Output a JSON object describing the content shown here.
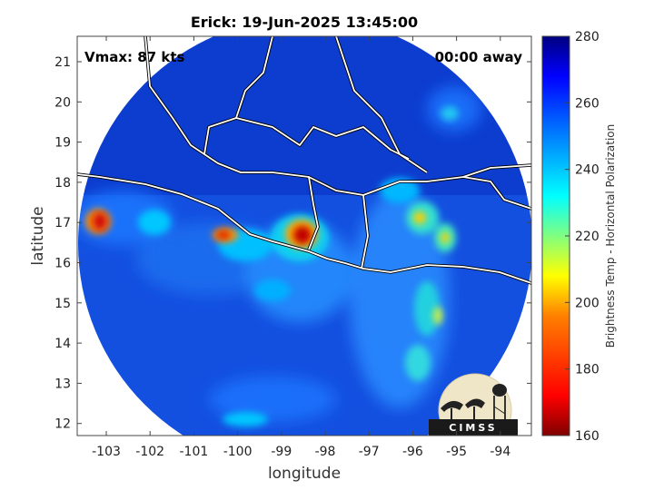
{
  "title": "Erick: 19-Jun-2025 13:45:00",
  "annotations": {
    "vmax": "Vmax: 87 kts",
    "time_away": "00:00 away"
  },
  "axes": {
    "xlabel": "longitude",
    "ylabel": "latitude",
    "x_ticks": [
      "-103",
      "-102",
      "-101",
      "-100",
      "-99",
      "-98",
      "-97",
      "-96",
      "-95",
      "-94"
    ],
    "y_ticks": [
      "21",
      "20",
      "19",
      "18",
      "17",
      "16",
      "15",
      "14",
      "13",
      "12"
    ]
  },
  "colorbar": {
    "label": "Brightness Temp - Horizontal Polarization",
    "ticks": [
      "280",
      "260",
      "240",
      "220",
      "200",
      "180",
      "160"
    ],
    "colormap": [
      "#800000",
      "#ff0000",
      "#ff8000",
      "#ffff00",
      "#80ff80",
      "#00ffff",
      "#0080ff",
      "#0000ff",
      "#000080"
    ]
  },
  "logo": {
    "text": "CIMSS"
  }
}
